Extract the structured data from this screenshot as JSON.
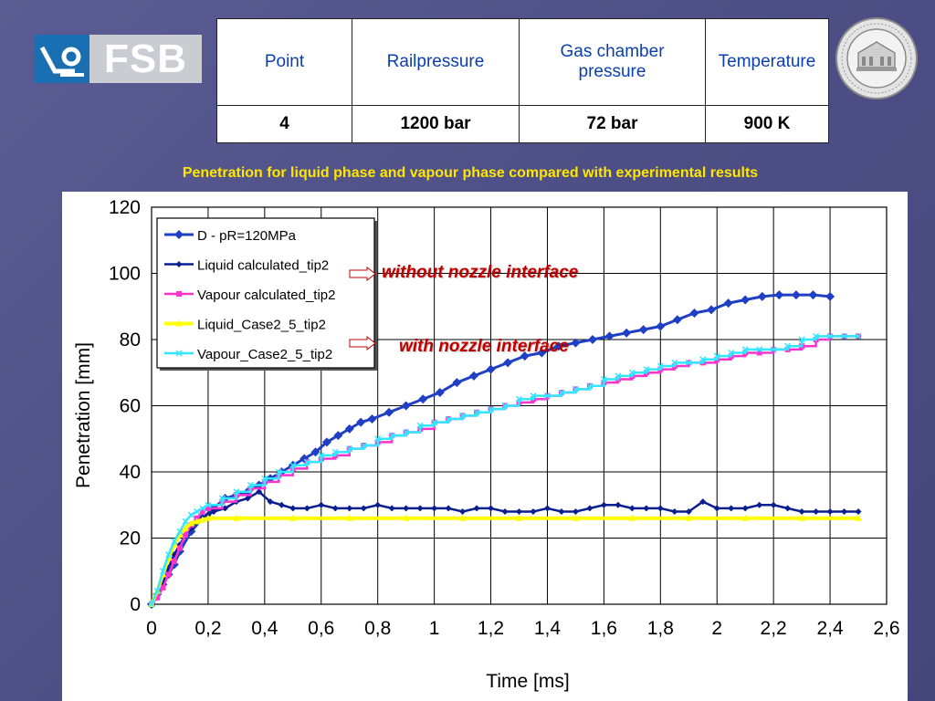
{
  "logo": {
    "text": "FSB"
  },
  "params_table": {
    "headers": [
      "Point",
      "Railpressure",
      "Gas chamber pressure",
      "Temperature"
    ],
    "values": [
      "4",
      "1200 bar",
      "72 bar",
      "900 K"
    ]
  },
  "subtitle": "Penetration for liquid phase and vapour phase compared with experimental  results",
  "annotations": {
    "without": "without nozzle interface",
    "with": "with nozzle interface"
  },
  "colors": {
    "subtitle": "#ffe600",
    "annotation": "#c00000",
    "header_text": "#0b3fae"
  },
  "chart_data": {
    "type": "line",
    "xlabel": "Time [ms]",
    "ylabel": "Penetration [mm]",
    "xlim": [
      0,
      2.6
    ],
    "ylim": [
      0,
      120
    ],
    "xticks": [
      0,
      0.2,
      0.4,
      0.6,
      0.8,
      1,
      1.2,
      1.4,
      1.6,
      1.8,
      2,
      2.2,
      2.4,
      2.6
    ],
    "xtick_labels": [
      "0",
      "0,2",
      "0,4",
      "0,6",
      "0,8",
      "1",
      "1,2",
      "1,4",
      "1,6",
      "1,8",
      "2",
      "2,2",
      "2,4",
      "2,6"
    ],
    "yticks": [
      0,
      20,
      40,
      60,
      80,
      100,
      120
    ],
    "grid": true,
    "legend_position": "top-left",
    "series": [
      {
        "name": "D - pR=120MPa",
        "color": "#1f3fc4",
        "marker": "diamond",
        "x": [
          0,
          0.02,
          0.04,
          0.06,
          0.08,
          0.1,
          0.14,
          0.18,
          0.22,
          0.26,
          0.3,
          0.34,
          0.38,
          0.42,
          0.46,
          0.5,
          0.54,
          0.58,
          0.62,
          0.66,
          0.7,
          0.74,
          0.78,
          0.84,
          0.9,
          0.96,
          1.02,
          1.08,
          1.14,
          1.2,
          1.26,
          1.32,
          1.38,
          1.44,
          1.5,
          1.56,
          1.62,
          1.68,
          1.74,
          1.8,
          1.86,
          1.92,
          1.98,
          2.04,
          2.1,
          2.16,
          2.22,
          2.28,
          2.34,
          2.4
        ],
        "y": [
          0,
          3,
          6,
          9,
          12,
          16,
          22,
          26,
          29,
          32,
          33,
          34,
          36,
          38,
          40,
          42,
          44,
          46,
          49,
          51,
          53,
          55,
          56,
          58,
          60,
          62,
          64,
          67,
          69,
          71,
          73,
          75,
          76,
          78,
          79,
          80,
          81,
          82,
          83,
          84,
          86,
          88,
          89,
          91,
          92,
          93,
          93.5,
          93.5,
          93.5,
          93
        ]
      },
      {
        "name": "Liquid calculated_tip2",
        "color": "#0a1f8f",
        "marker": "small-diamond",
        "x": [
          0,
          0.02,
          0.04,
          0.06,
          0.08,
          0.1,
          0.12,
          0.14,
          0.16,
          0.18,
          0.2,
          0.22,
          0.26,
          0.3,
          0.34,
          0.38,
          0.42,
          0.46,
          0.5,
          0.55,
          0.6,
          0.65,
          0.7,
          0.75,
          0.8,
          0.85,
          0.9,
          0.95,
          1.0,
          1.05,
          1.1,
          1.15,
          1.2,
          1.25,
          1.3,
          1.35,
          1.4,
          1.45,
          1.5,
          1.55,
          1.6,
          1.65,
          1.7,
          1.75,
          1.8,
          1.85,
          1.9,
          1.95,
          2.0,
          2.05,
          2.1,
          2.15,
          2.2,
          2.25,
          2.3,
          2.35,
          2.4,
          2.45,
          2.5
        ],
        "y": [
          0,
          3,
          7,
          11,
          15,
          18,
          21,
          23,
          25,
          26,
          27,
          28,
          29,
          31,
          32,
          34,
          31,
          30,
          29,
          29,
          30,
          29,
          29,
          29,
          30,
          29,
          29,
          29,
          29,
          29,
          28,
          29,
          29,
          28,
          28,
          28,
          29,
          28,
          28,
          29,
          30,
          30,
          29,
          29,
          29,
          28,
          28,
          31,
          29,
          29,
          29,
          30,
          30,
          29,
          28,
          28,
          28,
          28,
          28
        ]
      },
      {
        "name": "Vapour calculated_tip2",
        "color": "#ff33cc",
        "marker": "square",
        "x": [
          0,
          0.02,
          0.04,
          0.06,
          0.08,
          0.1,
          0.12,
          0.14,
          0.16,
          0.18,
          0.2,
          0.25,
          0.3,
          0.35,
          0.4,
          0.45,
          0.5,
          0.55,
          0.6,
          0.65,
          0.7,
          0.75,
          0.8,
          0.85,
          0.9,
          0.95,
          1.0,
          1.05,
          1.1,
          1.15,
          1.2,
          1.25,
          1.3,
          1.35,
          1.4,
          1.45,
          1.5,
          1.55,
          1.6,
          1.65,
          1.7,
          1.75,
          1.8,
          1.85,
          1.9,
          1.95,
          2.0,
          2.05,
          2.1,
          2.15,
          2.2,
          2.25,
          2.3,
          2.35,
          2.4,
          2.45,
          2.5
        ],
        "y": [
          0,
          2,
          5,
          9,
          13,
          17,
          21,
          24,
          26,
          28,
          29,
          31,
          33,
          35,
          37,
          39,
          41,
          43,
          44,
          45,
          47,
          48,
          49,
          51,
          52,
          53,
          55,
          56,
          57,
          58,
          59,
          60,
          61,
          62,
          63,
          64,
          65,
          66,
          67,
          68,
          69,
          70,
          71,
          72,
          73,
          73,
          74,
          75,
          76,
          76,
          77,
          77,
          78,
          80,
          81,
          81,
          81
        ]
      },
      {
        "name": "Liquid_Case2_5_tip2",
        "color": "#ffff00",
        "marker": "triangle",
        "x": [
          0,
          0.02,
          0.04,
          0.06,
          0.08,
          0.1,
          0.12,
          0.14,
          0.16,
          0.18,
          0.2,
          0.3,
          0.5,
          0.7,
          0.9,
          1.1,
          1.3,
          1.5,
          1.7,
          1.9,
          2.1,
          2.3,
          2.5
        ],
        "y": [
          0,
          4,
          9,
          14,
          18,
          21,
          23,
          24.5,
          25,
          25.5,
          26,
          26,
          26,
          26,
          26,
          26,
          26,
          26,
          26,
          26,
          26,
          26,
          26
        ]
      },
      {
        "name": "Vapour_Case2_5_tip2",
        "color": "#33e6ff",
        "marker": "x",
        "x": [
          0,
          0.02,
          0.04,
          0.06,
          0.08,
          0.1,
          0.12,
          0.14,
          0.16,
          0.18,
          0.2,
          0.25,
          0.3,
          0.35,
          0.4,
          0.45,
          0.5,
          0.55,
          0.6,
          0.65,
          0.7,
          0.75,
          0.8,
          0.85,
          0.9,
          0.95,
          1.0,
          1.05,
          1.1,
          1.15,
          1.2,
          1.25,
          1.3,
          1.35,
          1.4,
          1.45,
          1.5,
          1.55,
          1.6,
          1.65,
          1.7,
          1.75,
          1.8,
          1.85,
          1.9,
          1.95,
          2.0,
          2.05,
          2.1,
          2.15,
          2.2,
          2.25,
          2.3,
          2.35,
          2.4,
          2.45,
          2.5
        ],
        "y": [
          0,
          4,
          10,
          15,
          19,
          22,
          25,
          27,
          28,
          29,
          30,
          32,
          34,
          36,
          38,
          40,
          42,
          43,
          45,
          46,
          47,
          48,
          50,
          51,
          52,
          54,
          55,
          56,
          57,
          58,
          59,
          60,
          62,
          63,
          63,
          64,
          65,
          66,
          68,
          69,
          70,
          71,
          72,
          73,
          73,
          74,
          75,
          76,
          77,
          77,
          77,
          78,
          80,
          81,
          81,
          81,
          81
        ]
      }
    ]
  }
}
